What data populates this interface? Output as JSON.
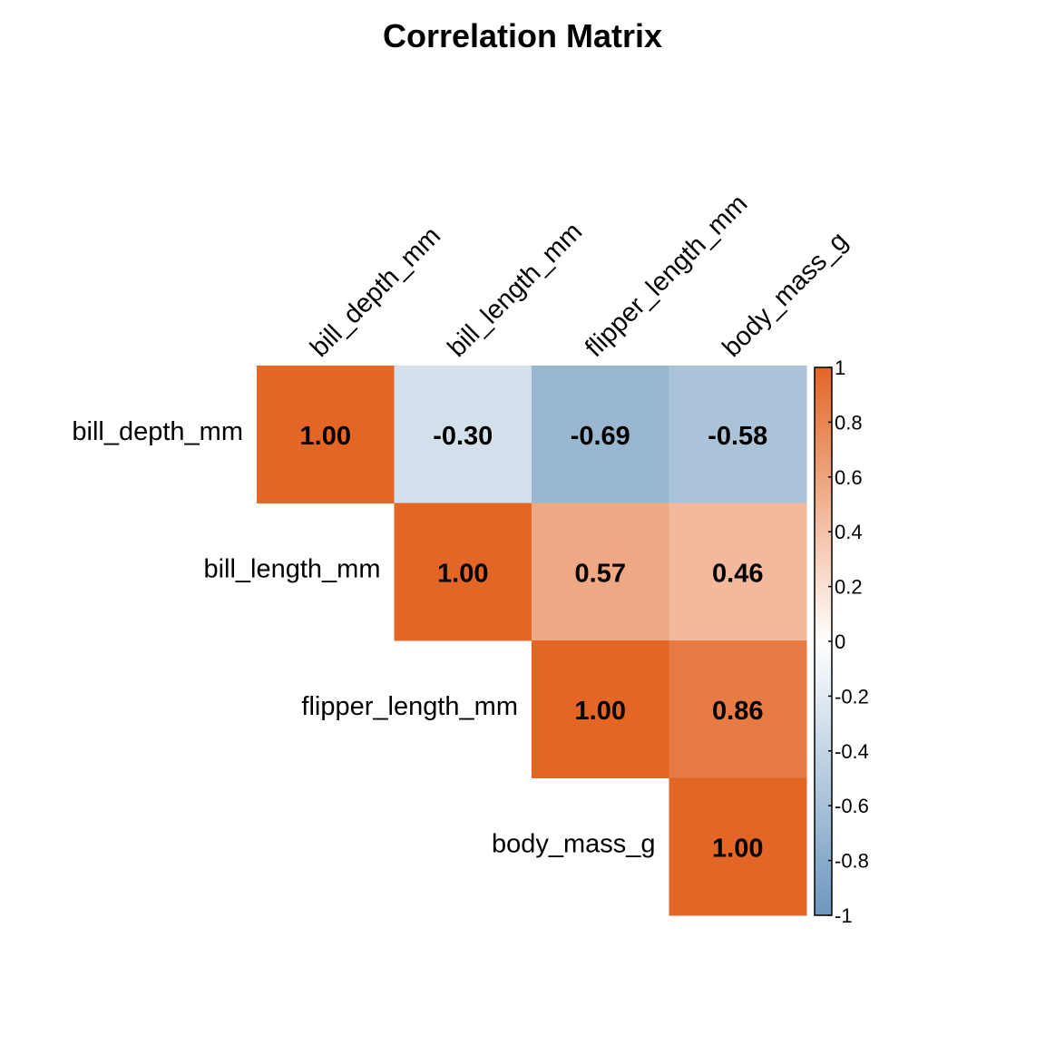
{
  "chart_data": {
    "type": "heatmap",
    "title": "Correlation Matrix",
    "variables": [
      "bill_depth_mm",
      "bill_length_mm",
      "flipper_length_mm",
      "body_mass_g"
    ],
    "shape": "upper-triangle",
    "matrix": [
      [
        1.0,
        -0.3,
        -0.69,
        -0.58
      ],
      [
        null,
        1.0,
        0.57,
        0.46
      ],
      [
        null,
        null,
        1.0,
        0.86
      ],
      [
        null,
        null,
        null,
        1.0
      ]
    ],
    "value_labels": [
      [
        "1.00",
        "-0.30",
        "-0.69",
        "-0.58"
      ],
      [
        null,
        "1.00",
        "0.57",
        "0.46"
      ],
      [
        null,
        null,
        "1.00",
        "0.86"
      ],
      [
        null,
        null,
        null,
        "1.00"
      ]
    ],
    "colorbar": {
      "range": [
        -1,
        1
      ],
      "ticks": [
        1,
        0.8,
        0.6,
        0.4,
        0.2,
        0,
        -0.2,
        -0.4,
        -0.6,
        -0.8,
        -1
      ],
      "tick_labels": [
        "1",
        "0.8",
        "0.6",
        "0.4",
        "0.2",
        "0",
        "-0.2",
        "-0.4",
        "-0.6",
        "-0.8",
        "-1"
      ],
      "placement": "right"
    },
    "colors": {
      "negative": "#6c97be",
      "midpoint": "#ffffff",
      "positive": "#e36627"
    }
  }
}
